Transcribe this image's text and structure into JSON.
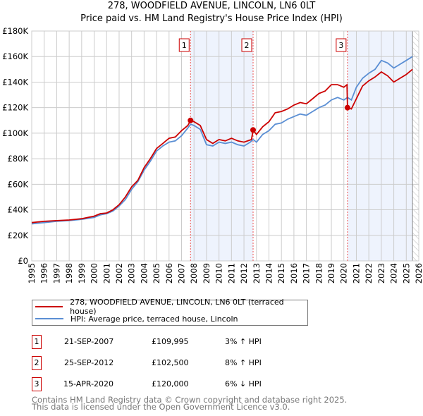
{
  "title": "278, WOODFIELD AVENUE, LINCOLN, LN6 0LT",
  "subtitle": "Price paid vs. HM Land Registry's House Price Index (HPI)",
  "colors": {
    "price": "#cc0000",
    "hpi": "#5b8fd4",
    "shade": "#eef3fd",
    "grid": "#cccccc"
  },
  "chart_data": {
    "type": "line",
    "title": "278, WOODFIELD AVENUE, LINCOLN, LN6 0LT",
    "xlim": [
      1995,
      2026
    ],
    "ylim": [
      0,
      180000
    ],
    "grid": true,
    "legend_position": "bottom",
    "x_ticks": [
      "1995",
      "1996",
      "1997",
      "1998",
      "1999",
      "2000",
      "2001",
      "2002",
      "2003",
      "2004",
      "2005",
      "2006",
      "2007",
      "2008",
      "2009",
      "2010",
      "2011",
      "2012",
      "2013",
      "2014",
      "2015",
      "2016",
      "2017",
      "2018",
      "2019",
      "2020",
      "2021",
      "2022",
      "2023",
      "2024",
      "2025",
      "2026"
    ],
    "y_ticks": [
      {
        "v": 0,
        "label": "£0"
      },
      {
        "v": 20000,
        "label": "£20K"
      },
      {
        "v": 40000,
        "label": "£40K"
      },
      {
        "v": 60000,
        "label": "£60K"
      },
      {
        "v": 80000,
        "label": "£80K"
      },
      {
        "v": 100000,
        "label": "£100K"
      },
      {
        "v": 120000,
        "label": "£120K"
      },
      {
        "v": 140000,
        "label": "£140K"
      },
      {
        "v": 160000,
        "label": "£160K"
      },
      {
        "v": 180000,
        "label": "£180K"
      }
    ],
    "series": [
      {
        "name": "278, WOODFIELD AVENUE, LINCOLN, LN6 0LT (terraced house)",
        "color": "#cc0000",
        "x": [
          1995,
          1996,
          1997,
          1998,
          1999,
          2000,
          2000.5,
          2001,
          2001.5,
          2002,
          2002.5,
          2003,
          2003.5,
          2004,
          2004.5,
          2005,
          2005.5,
          2006,
          2006.5,
          2007,
          2007.5,
          2007.72,
          2008,
          2008.5,
          2009,
          2009.5,
          2010,
          2010.5,
          2011,
          2011.5,
          2012,
          2012.6,
          2012.73,
          2013,
          2013.5,
          2014,
          2014.5,
          2015,
          2015.5,
          2016,
          2016.5,
          2017,
          2017.5,
          2018,
          2018.5,
          2019,
          2019.5,
          2020,
          2020.25,
          2020.29,
          2020.6,
          2021,
          2021.5,
          2022,
          2022.5,
          2023,
          2023.5,
          2024,
          2024.5,
          2025,
          2025.5
        ],
        "y": [
          30000,
          31000,
          31500,
          32000,
          33000,
          35000,
          37000,
          37500,
          40000,
          44000,
          50000,
          58000,
          63000,
          73000,
          80000,
          88000,
          92000,
          96000,
          97000,
          102000,
          106000,
          109995,
          109000,
          106000,
          95000,
          92000,
          95000,
          94000,
          96000,
          94000,
          93000,
          95000,
          102500,
          99000,
          105000,
          109000,
          116000,
          117000,
          119000,
          122000,
          124000,
          123000,
          127000,
          131000,
          133000,
          138000,
          138000,
          136000,
          138000,
          120000,
          119000,
          127000,
          137000,
          141000,
          144000,
          148000,
          145000,
          140000,
          143000,
          146000,
          150000
        ]
      },
      {
        "name": "HPI: Average price, terraced house, Lincoln",
        "color": "#5b8fd4",
        "x": [
          1995,
          1996,
          1997,
          1998,
          1999,
          2000,
          2000.5,
          2001,
          2001.5,
          2002,
          2002.5,
          2003,
          2003.5,
          2004,
          2004.5,
          2005,
          2005.5,
          2006,
          2006.5,
          2007,
          2007.5,
          2007.72,
          2008,
          2008.5,
          2009,
          2009.5,
          2010,
          2010.5,
          2011,
          2011.5,
          2012,
          2012.5,
          2012.73,
          2013,
          2013.5,
          2014,
          2014.5,
          2015,
          2015.5,
          2016,
          2016.5,
          2017,
          2017.5,
          2018,
          2018.5,
          2019,
          2019.5,
          2020,
          2020.29,
          2020.6,
          2021,
          2021.5,
          2022,
          2022.5,
          2023,
          2023.5,
          2024,
          2024.5,
          2025,
          2025.5
        ],
        "y": [
          29000,
          30000,
          31000,
          31500,
          32500,
          34000,
          36000,
          37000,
          39000,
          43000,
          48000,
          56000,
          62000,
          71000,
          78000,
          86000,
          90000,
          93000,
          94000,
          98000,
          104000,
          107000,
          106000,
          103000,
          91000,
          90000,
          93000,
          92000,
          93000,
          91000,
          90000,
          93000,
          95000,
          93000,
          99000,
          102000,
          107000,
          108000,
          111000,
          113000,
          115000,
          114000,
          117000,
          120000,
          122000,
          126000,
          128000,
          126000,
          128000,
          126000,
          136000,
          143000,
          147000,
          150000,
          157000,
          155000,
          151000,
          154000,
          157000,
          160000
        ]
      }
    ],
    "sales": [
      {
        "id": "1",
        "x": 2007.72,
        "y": 109995
      },
      {
        "id": "2",
        "x": 2012.73,
        "y": 102500
      },
      {
        "id": "3",
        "x": 2020.29,
        "y": 120000
      }
    ],
    "data_end": 2025.5
  },
  "legend": {
    "price_label": "278, WOODFIELD AVENUE, LINCOLN, LN6 0LT (terraced house)",
    "hpi_label": "HPI: Average price, terraced house, Lincoln"
  },
  "transactions": [
    {
      "id": "1",
      "date": "21-SEP-2007",
      "price": "£109,995",
      "hpi": "3% ↑ HPI"
    },
    {
      "id": "2",
      "date": "25-SEP-2012",
      "price": "£102,500",
      "hpi": "8% ↑ HPI"
    },
    {
      "id": "3",
      "date": "15-APR-2020",
      "price": "£120,000",
      "hpi": "6% ↓ HPI"
    }
  ],
  "footer": {
    "line1": "Contains HM Land Registry data © Crown copyright and database right 2025.",
    "line2": "This data is licensed under the Open Government Licence v3.0."
  }
}
